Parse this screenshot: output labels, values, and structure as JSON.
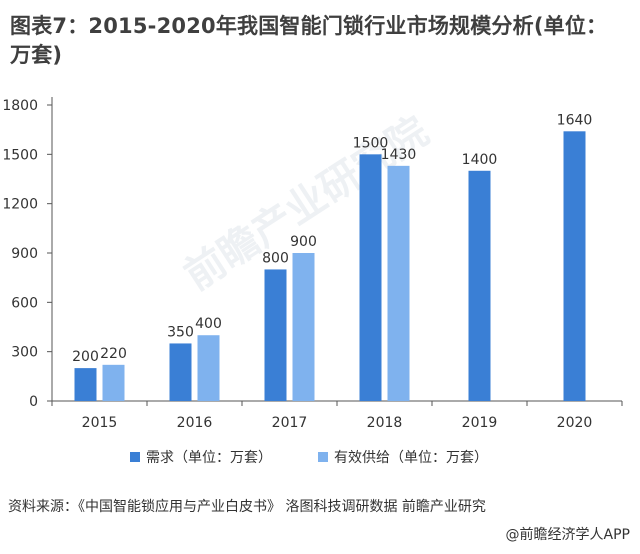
{
  "title": "图表7：2015-2020年我国智能门锁行业市场规模分析(单位：万套)",
  "source": "资料来源：《中国智能锁应用与产业白皮书》 洛图科技调研数据 前瞻产业研究",
  "credit": "@前瞻经济学人APP",
  "watermark": "前瞻产业研究院",
  "colors": {
    "demand": "#3a7fd5",
    "supply": "#7fb2ee",
    "axis": "#555555"
  },
  "chart_data": {
    "type": "bar",
    "categories": [
      "2015",
      "2016",
      "2017",
      "2018",
      "2019",
      "2020"
    ],
    "series": [
      {
        "name": "需求（单位：万套）",
        "values": [
          200,
          350,
          800,
          1500,
          1400,
          1640
        ]
      },
      {
        "name": "有效供给（单位：万套）",
        "values": [
          220,
          400,
          900,
          1430,
          null,
          null
        ]
      }
    ],
    "yticks": [
      0,
      300,
      600,
      900,
      1200,
      1500,
      1800
    ],
    "ylim": [
      0,
      1800
    ],
    "legend_position": "bottom",
    "grid": false
  }
}
